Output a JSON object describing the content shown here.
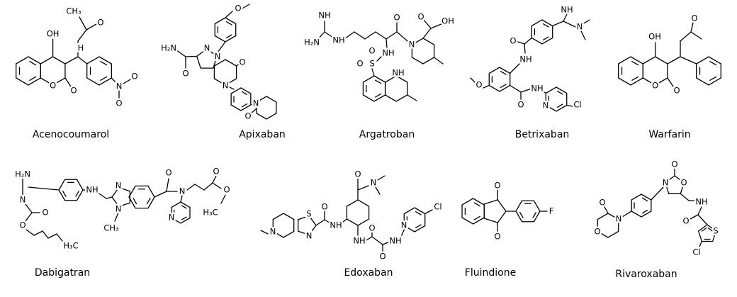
{
  "compounds": [
    {
      "name": "Acenocoumarol",
      "atoms": [
        "CH₃",
        "O",
        "OH",
        "H",
        "O",
        "O",
        "N",
        "O",
        "O"
      ]
    },
    {
      "name": "Apixaban",
      "atoms": [
        "O",
        "N",
        "N",
        "H₂N",
        "O",
        "O",
        "N",
        "N",
        "O"
      ]
    },
    {
      "name": "Argatroban",
      "atoms": [
        "NH",
        "H₂N",
        "NH",
        "O",
        "N",
        "OH",
        "O",
        "NH",
        "S",
        "O",
        "O",
        "NH"
      ]
    },
    {
      "name": "Betrixaban",
      "atoms": [
        "NH",
        "N",
        "O",
        "NH",
        "O",
        "O",
        "NH",
        "N",
        "Cl"
      ]
    },
    {
      "name": "Warfarin",
      "atoms": [
        "O",
        "OH",
        "O",
        "O"
      ]
    },
    {
      "name": "Dabigatran",
      "atoms": [
        "H₂N",
        "N",
        "O",
        "O",
        "NH",
        "N",
        "N",
        "CH₃",
        "O",
        "N",
        "N",
        "O",
        "O",
        "H₃C",
        "H₃C"
      ]
    },
    {
      "name": "Edoxaban",
      "atoms": [
        "O",
        "N",
        "S",
        "N",
        "N",
        "O",
        "NH",
        "NH",
        "O",
        "O",
        "NH",
        "N",
        "Cl"
      ]
    },
    {
      "name": "Fluindione",
      "atoms": [
        "O",
        "O",
        "F"
      ]
    },
    {
      "name": "Rivaroxaban",
      "atoms": [
        "O",
        "N",
        "O",
        "O",
        "N",
        "O",
        "NH",
        "O",
        "S",
        "Cl"
      ]
    }
  ]
}
